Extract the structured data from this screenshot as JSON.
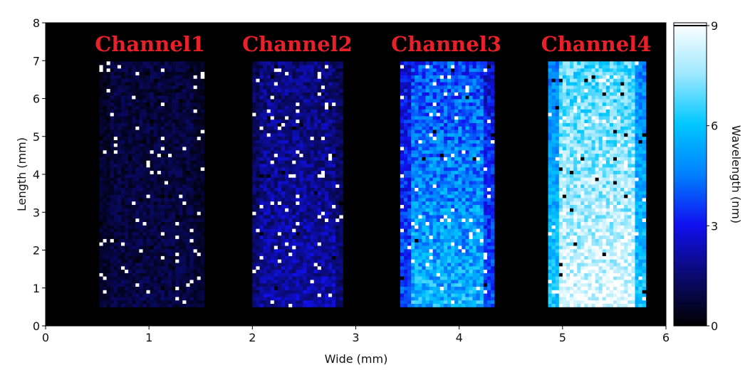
{
  "chart_data": {
    "type": "heatmap",
    "xlabel": "Wide (mm)",
    "ylabel": "Length (mm)",
    "xlim": [
      0,
      6
    ],
    "ylim": [
      0,
      8
    ],
    "xticks": [
      "0",
      "1",
      "2",
      "3",
      "4",
      "5",
      "6"
    ],
    "yticks": [
      "0",
      "1",
      "2",
      "3",
      "4",
      "5",
      "6",
      "7",
      "8"
    ],
    "colorbar": {
      "label": "Wavelength (nm)",
      "range": [
        0,
        9
      ],
      "ticks": [
        "0",
        "3",
        "6",
        "9"
      ],
      "colormap": [
        "#000000",
        "#0a0a70",
        "#1010f0",
        "#0080ff",
        "#00c8ff",
        "#a0e8ff",
        "#ffffff"
      ]
    },
    "background": "#000000",
    "channels": [
      {
        "name": "Channel1",
        "x_range": [
          0.52,
          1.5
        ],
        "y_range": [
          0.5,
          6.95
        ],
        "mean_top": 0.8,
        "mean_bottom": 0.9,
        "noise": 0.5
      },
      {
        "name": "Channel2",
        "x_range": [
          2.0,
          2.87
        ],
        "y_range": [
          0.5,
          6.95
        ],
        "mean_top": 1.6,
        "mean_bottom": 2.2,
        "noise": 0.8
      },
      {
        "name": "Channel3",
        "x_range": [
          3.43,
          4.32
        ],
        "y_range": [
          0.5,
          6.95
        ],
        "mean_top": 3.8,
        "mean_bottom": 5.6,
        "noise": 1.3
      },
      {
        "name": "Channel4",
        "x_range": [
          4.86,
          5.79
        ],
        "y_range": [
          0.5,
          6.95
        ],
        "mean_top": 6.6,
        "mean_bottom": 8.6,
        "noise": 1.2
      }
    ]
  }
}
